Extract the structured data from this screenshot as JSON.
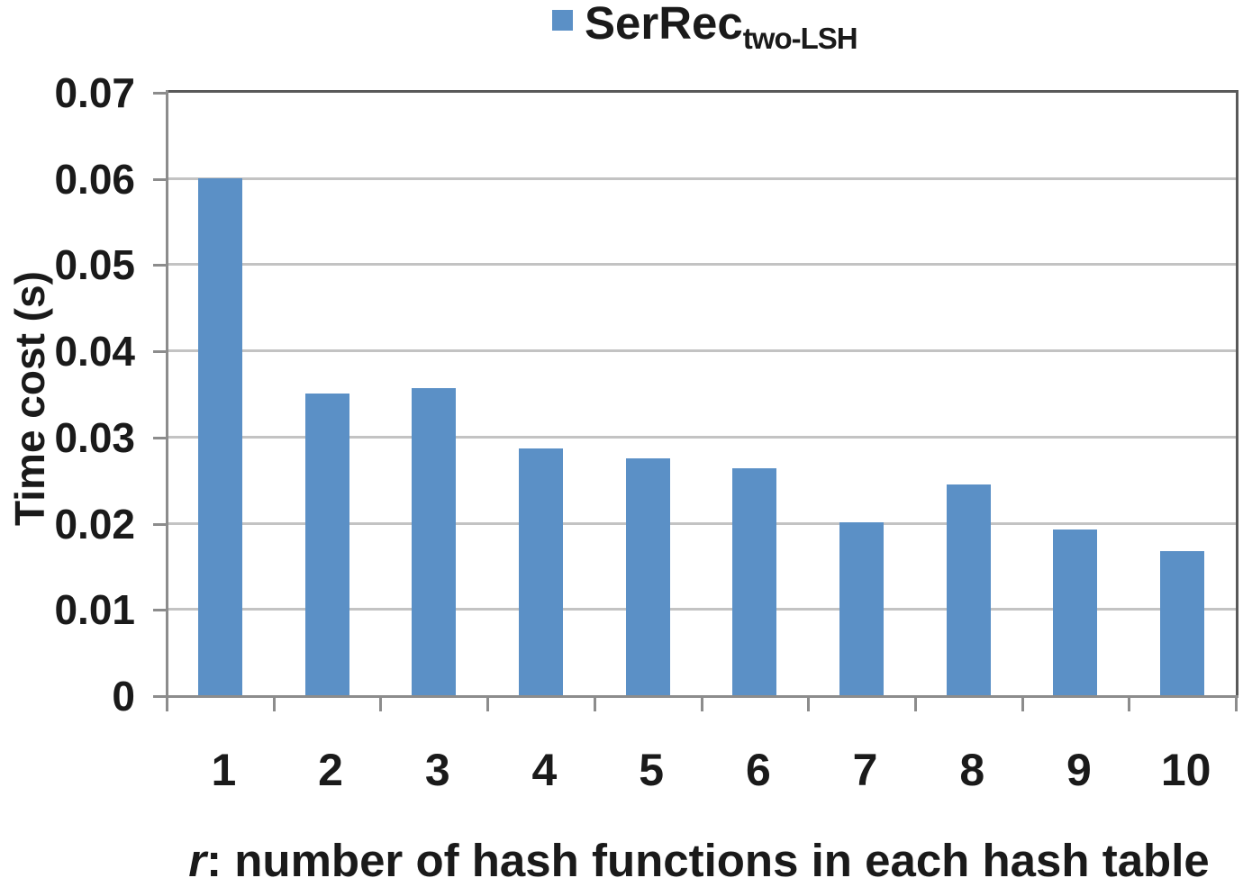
{
  "legend": {
    "main_label": "SerRec",
    "sub_label": "two-LSH",
    "swatch_color": "#5b90c6"
  },
  "y_axis": {
    "title": "Time cost (s)",
    "tick_labels": [
      "0",
      "0.01",
      "0.02",
      "0.03",
      "0.04",
      "0.05",
      "0.06",
      "0.07"
    ]
  },
  "x_axis": {
    "title_italic_prefix": "r",
    "title_rest": ": number of hash functions in each hash table",
    "tick_labels": [
      "1",
      "2",
      "3",
      "4",
      "5",
      "6",
      "7",
      "8",
      "9",
      "10"
    ]
  },
  "chart_data": {
    "type": "bar",
    "title": "",
    "series": [
      {
        "name": "SerRec two-LSH",
        "values": [
          0.06,
          0.035,
          0.0356,
          0.0286,
          0.0275,
          0.0263,
          0.0201,
          0.0245,
          0.0192,
          0.0167
        ]
      }
    ],
    "categories": [
      "1",
      "2",
      "3",
      "4",
      "5",
      "6",
      "7",
      "8",
      "9",
      "10"
    ],
    "xlabel": "r: number of hash functions in each hash table",
    "ylabel": "Time cost (s)",
    "ylim": [
      0,
      0.07
    ],
    "ytick_step": 0.01,
    "grid": "horizontal",
    "legend_position": "top-center",
    "bar_color": "#5b90c6"
  },
  "colors": {
    "bar": "#5b90c6",
    "gridline": "#c3c3c3",
    "frame": "#595959",
    "axis": "#8c8c8c",
    "text": "#1a1a1a",
    "background": "#ffffff"
  }
}
